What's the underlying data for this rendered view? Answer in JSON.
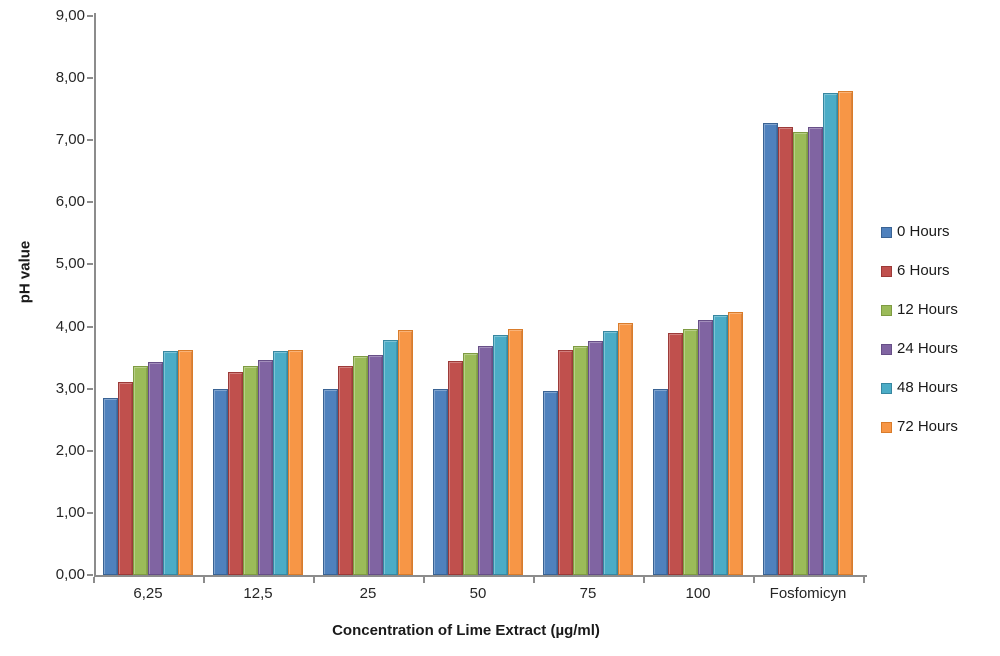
{
  "chart_data": {
    "type": "bar",
    "title": "",
    "xlabel": "Concentration of Lime Extract (µg/ml)",
    "ylabel": "pH value",
    "ylim": [
      0,
      9
    ],
    "ytick_step": 1,
    "ytick_labels": [
      "0,00",
      "1,00",
      "2,00",
      "3,00",
      "4,00",
      "5,00",
      "6,00",
      "7,00",
      "8,00",
      "9,00"
    ],
    "categories": [
      "6,25",
      "12,5",
      "25",
      "50",
      "75",
      "100",
      "Fosfomicyn"
    ],
    "series": [
      {
        "name": "0 Hours",
        "color": "#4F81BD",
        "border": "#3A6394",
        "values": [
          2.85,
          2.99,
          2.99,
          2.99,
          2.96,
          2.99,
          7.27
        ]
      },
      {
        "name": "6 Hours",
        "color": "#C0504D",
        "border": "#9C3A38",
        "values": [
          3.11,
          3.27,
          3.37,
          3.45,
          3.62,
          3.9,
          7.22
        ]
      },
      {
        "name": "12 Hours",
        "color": "#9BBB59",
        "border": "#7E9B42",
        "values": [
          3.37,
          3.37,
          3.52,
          3.57,
          3.68,
          3.96,
          7.13
        ]
      },
      {
        "name": "24 Hours",
        "color": "#8064A2",
        "border": "#674F87",
        "values": [
          3.43,
          3.46,
          3.54,
          3.68,
          3.77,
          4.1,
          7.22
        ]
      },
      {
        "name": "48 Hours",
        "color": "#4BACC6",
        "border": "#3787A0",
        "values": [
          3.6,
          3.6,
          3.78,
          3.87,
          3.93,
          4.18,
          7.76
        ]
      },
      {
        "name": "72 Hours",
        "color": "#F79646",
        "border": "#D97C2B",
        "values": [
          3.62,
          3.62,
          3.94,
          3.96,
          4.05,
          4.24,
          7.8
        ]
      }
    ],
    "legend_position": "right",
    "grid": false,
    "axis_color": "#8c8c8c",
    "text_color": "#262626"
  }
}
